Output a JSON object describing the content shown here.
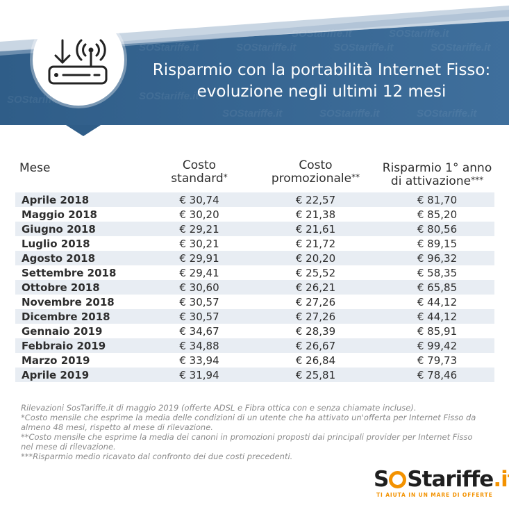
{
  "header": {
    "title_line1": "Risparmio con la portabilità Internet Fisso:",
    "title_line2": "evoluzione negli ultimi 12 mesi",
    "background_color": "#3e6b95",
    "watermark_text": "SOStariffe.it"
  },
  "table": {
    "columns": {
      "mese": "Mese",
      "costo_standard": "Costo",
      "costo_standard_2": "standard",
      "costo_standard_mark": "*",
      "costo_promo": "Costo",
      "costo_promo_2": "promozionale",
      "costo_promo_mark": "**",
      "risparmio": "Risparmio 1° anno",
      "risparmio_2": "di attivazione",
      "risparmio_mark": "***"
    },
    "rows": [
      {
        "mese": "Aprile 2018",
        "standard": "€ 30,74",
        "promo": "€ 22,57",
        "risparmio": "€ 81,70"
      },
      {
        "mese": "Maggio 2018",
        "standard": "€ 30,20",
        "promo": "€ 21,38",
        "risparmio": "€ 85,20"
      },
      {
        "mese": "Giugno 2018",
        "standard": "€ 29,21",
        "promo": "€ 21,61",
        "risparmio": "€ 80,56"
      },
      {
        "mese": "Luglio 2018",
        "standard": "€ 30,21",
        "promo": "€ 21,72",
        "risparmio": "€ 89,15"
      },
      {
        "mese": "Agosto 2018",
        "standard": "€ 29,91",
        "promo": "€ 20,20",
        "risparmio": "€ 96,32"
      },
      {
        "mese": "Settembre 2018",
        "standard": "€ 29,41",
        "promo": "€ 25,52",
        "risparmio": "€ 58,35"
      },
      {
        "mese": "Ottobre 2018",
        "standard": "€ 30,60",
        "promo": "€ 26,21",
        "risparmio": "€ 65,85"
      },
      {
        "mese": "Novembre 2018",
        "standard": "€ 30,57",
        "promo": "€ 27,26",
        "risparmio": "€ 44,12"
      },
      {
        "mese": "Dicembre 2018",
        "standard": "€ 30,57",
        "promo": "€ 27,26",
        "risparmio": "€ 44,12"
      },
      {
        "mese": "Gennaio 2019",
        "standard": "€ 34,67",
        "promo": "€ 28,39",
        "risparmio": "€ 85,91"
      },
      {
        "mese": "Febbraio 2019",
        "standard": "€ 34,88",
        "promo": "€ 26,67",
        "risparmio": "€ 99,42"
      },
      {
        "mese": "Marzo 2019",
        "standard": "€ 33,94",
        "promo": "€ 26,84",
        "risparmio": "€ 79,73"
      },
      {
        "mese": "Aprile 2019",
        "standard": "€ 31,94",
        "promo": "€ 25,81",
        "risparmio": "€ 78,46"
      }
    ]
  },
  "notes": [
    "Rilevazioni SosTariffe.it di maggio 2019 (offerte ADSL e Fibra ottica con e senza chiamate incluse).",
    "*Costo mensile che esprime la media delle condizioni di un utente che ha attivato un'offerta per Internet Fisso da almeno 48 mesi, rispetto al mese di rilevazione.",
    "**Costo mensile che esprime la media dei canoni in promozioni proposti dai principali provider per Internet Fisso nel mese di rilevazione.",
    "***Risparmio medio ricavato dal confronto dei due costi precedenti."
  ],
  "logo": {
    "part1": "S",
    "part2": "S",
    "part3": "tariffe",
    "part4": ".it",
    "tagline": "TI AIUTA IN UN MARE DI OFFERTE",
    "accent_color": "#f39200"
  },
  "icons": {
    "header_icon": "router-download-icon"
  }
}
